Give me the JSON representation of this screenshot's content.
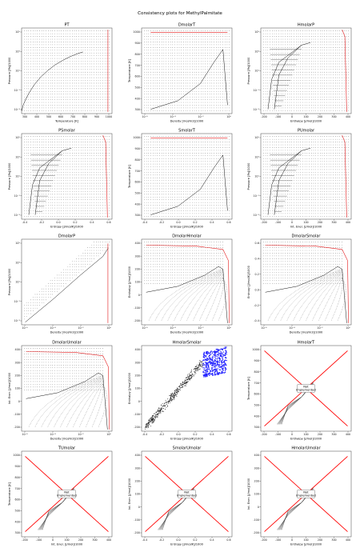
{
  "figure": {
    "title": "Consistency plots for MethylPalmitate"
  },
  "colors": {
    "grid_points": "#111111",
    "isoline": "#111111",
    "boundary": "#e31a1c",
    "points_blue": "#1f1fff",
    "not_implemented_cross": "#ff0000"
  },
  "chart_data": [
    {
      "type": "scatter",
      "title": "PT",
      "xlabel": "Temperature [K]",
      "ylabel": "Pressure [Pa]/1000",
      "x_ticks": [
        "300",
        "400",
        "500",
        "600",
        "700",
        "800",
        "900",
        "1000"
      ],
      "y_ticks": [
        "10⁻³",
        "10⁻¹",
        "10¹",
        "10³",
        "10⁵"
      ],
      "xlim": [
        300,
        1000
      ],
      "y_scale": "log",
      "ylim": [
        0.0001,
        1000000
      ],
      "grid_points": true,
      "saturation_curve": {
        "x": [
          302,
          310,
          330,
          360,
          400,
          450,
          500,
          560,
          620,
          680,
          740,
          775
        ],
        "y": [
          0.0002,
          0.0008,
          0.004,
          0.03,
          0.25,
          2,
          10,
          50,
          170,
          480,
          1100,
          1600
        ]
      },
      "boundary": "right"
    },
    {
      "type": "scatter",
      "title": "DmolarT",
      "xlabel": "Density [mol/m3]/1000",
      "ylabel": "Temperature [K]",
      "x_ticks": [
        "10⁻⁶",
        "10⁻⁴",
        "10⁻²",
        "10⁰"
      ],
      "y_ticks": [
        "300",
        "400",
        "500",
        "600",
        "700",
        "800",
        "900",
        "1000"
      ],
      "ylim": [
        270,
        1020
      ],
      "boundary": "top-right",
      "curve": {
        "x": [
          0.6,
          0.7,
          0.8,
          0.9,
          0.95
        ],
        "y": [
          300,
          360,
          500,
          650,
          775
        ]
      }
    },
    {
      "type": "scatter",
      "title": "HmolarP",
      "xlabel": "Enthalpy [J/mol]/1000",
      "ylabel": "Pressure [Pa]/1000",
      "x_ticks": [
        "-200",
        "-100",
        "0",
        "100",
        "200",
        "300",
        "400"
      ],
      "y_ticks": [
        "10⁻³",
        "10⁻¹",
        "10¹",
        "10³",
        "10⁵"
      ],
      "xlim": [
        -220,
        420
      ],
      "boundary": "right",
      "dome": true
    },
    {
      "type": "scatter",
      "title": "PSmolar",
      "xlabel": "Entropy [J/mol/K]/1000",
      "ylabel": "Pressure [Pa]/1000",
      "x_ticks": [
        "-0.4",
        "-0.2",
        "0.0",
        "0.2",
        "0.4",
        "0.6"
      ],
      "y_ticks": [
        "10⁻³",
        "10⁻¹",
        "10¹",
        "10³",
        "10⁵"
      ],
      "xlim": [
        -0.5,
        0.7
      ],
      "boundary": "right",
      "dome": true
    },
    {
      "type": "scatter",
      "title": "SmolarT",
      "xlabel": "Entropy [J/mol/K]/1000",
      "ylabel": "Temperature [K]",
      "x_ticks": [
        "-0.4",
        "-0.2",
        "0.0",
        "0.2",
        "0.4",
        "0.6"
      ],
      "y_ticks": [
        "300",
        "400",
        "500",
        "600",
        "700",
        "800",
        "900",
        "1000"
      ],
      "xlim": [
        -0.5,
        0.7
      ],
      "ylim": [
        270,
        1020
      ],
      "boundary": "top"
    },
    {
      "type": "scatter",
      "title": "PUmolar",
      "xlabel": "Int. Ener. [J/mol]/1000",
      "ylabel": "Pressure [Pa]/1000",
      "x_ticks": [
        "-200",
        "-100",
        "0",
        "100",
        "200",
        "300",
        "400"
      ],
      "y_ticks": [
        "10⁻³",
        "10⁻¹",
        "10¹",
        "10³",
        "10⁵"
      ],
      "xlim": [
        -220,
        420
      ],
      "boundary": "right",
      "dome": true
    },
    {
      "type": "scatter",
      "title": "DmolarP",
      "xlabel": "Density [mol/m3]/1000",
      "ylabel": "Pressure [Pa]/1000",
      "x_ticks": [
        "10⁻⁶",
        "10⁻⁴",
        "10⁻²",
        "10⁰"
      ],
      "y_ticks": [
        "10⁻³",
        "10⁻¹",
        "10¹",
        "10³",
        "10⁵"
      ],
      "boundary": "right",
      "diagonal_band": true
    },
    {
      "type": "scatter",
      "title": "DmolarHmolar",
      "xlabel": "Density [mol/m3]/1000",
      "ylabel": "Enthalpy [J/mol]/1000",
      "x_ticks": [
        "10⁻⁶",
        "10⁻⁴",
        "10⁻²",
        "10⁰"
      ],
      "y_ticks": [
        "-200",
        "-100",
        "0",
        "100",
        "200",
        "300",
        "400"
      ],
      "ylim": [
        -220,
        410
      ],
      "boundary": "top-right",
      "fan": true
    },
    {
      "type": "scatter",
      "title": "DmolarSmolar",
      "xlabel": "Density [mol/m3]/1000",
      "ylabel": "Entropy [J/mol/K]/1000",
      "x_ticks": [
        "10⁻⁶",
        "10⁻⁴",
        "10⁻²",
        "10⁰"
      ],
      "y_ticks": [
        "-0.4",
        "-0.2",
        "0.0",
        "0.2",
        "0.4",
        "0.6"
      ],
      "ylim": [
        -0.5,
        0.7
      ],
      "boundary": "top-right",
      "fan": true
    },
    {
      "type": "scatter",
      "title": "DmolarUmolar",
      "xlabel": "Density [mol/m3]/1000",
      "ylabel": "Int. Ener. [J/mol]/1000",
      "x_ticks": [
        "10⁻⁶",
        "10⁻⁴",
        "10⁻²",
        "10⁰"
      ],
      "y_ticks": [
        "-200",
        "-100",
        "0",
        "100",
        "200",
        "300",
        "400"
      ],
      "ylim": [
        -250,
        410
      ],
      "boundary": "top-right",
      "fan": true
    },
    {
      "type": "scatter",
      "title": "HmolarSmolar",
      "xlabel": "Entropy [J/mol/K]/1000",
      "ylabel": "Enthalpy [J/mol]/1000",
      "x_ticks": [
        "-0.4",
        "-0.2",
        "0.0",
        "0.2",
        "0.4",
        "0.6"
      ],
      "y_ticks": [
        "-200",
        "-100",
        "0",
        "100",
        "200",
        "300",
        "400"
      ],
      "xlim": [
        -0.5,
        0.7
      ],
      "ylim": [
        -220,
        410
      ],
      "points": "diagonal-with-blue-cluster"
    },
    {
      "type": "not_implemented",
      "title": "HmolarT",
      "xlabel": "Enthalpy [J/mol]/1000",
      "ylabel": "Temperature [K]",
      "x_ticks": [
        "-200",
        "-100",
        "0",
        "100",
        "200",
        "300",
        "400"
      ],
      "y_ticks": [
        "300",
        "400",
        "500",
        "600",
        "700",
        "800",
        "900",
        "1000"
      ],
      "xlim": [
        -250,
        420
      ],
      "ylim": [
        250,
        1050
      ],
      "note": "Not\nImplemented"
    },
    {
      "type": "not_implemented",
      "title": "TUmolar",
      "xlabel": "Int. Ener. [J/mol]/1000",
      "ylabel": "Temperature [K]",
      "x_ticks": [
        "-200",
        "-100",
        "0",
        "100",
        "200",
        "300",
        "400"
      ],
      "y_ticks": [
        "300",
        "400",
        "500",
        "600",
        "700",
        "800",
        "900",
        "1000"
      ],
      "xlim": [
        -250,
        420
      ],
      "ylim": [
        250,
        1050
      ],
      "note": "Not\nImplemented"
    },
    {
      "type": "not_implemented",
      "title": "SmolarUmolar",
      "xlabel": "Entropy [J/mol/K]/1000",
      "ylabel": "Int. Ener. [J/mol]/1000",
      "x_ticks": [
        "-0.4",
        "-0.2",
        "0.0",
        "0.2",
        "0.4",
        "0.6"
      ],
      "y_ticks": [
        "-200",
        "-100",
        "0",
        "100",
        "200",
        "300",
        "400"
      ],
      "xlim": [
        -0.5,
        0.7
      ],
      "ylim": [
        -250,
        420
      ],
      "note": "Not\nImplemented"
    },
    {
      "type": "not_implemented",
      "title": "HmolarUmolar",
      "xlabel": "Enthalpy [J/mol]/1000",
      "ylabel": "Int. Ener. [J/mol]/1000",
      "x_ticks": [
        "-200",
        "-100",
        "0",
        "100",
        "200",
        "300",
        "400"
      ],
      "y_ticks": [
        "-200",
        "-100",
        "0",
        "100",
        "200",
        "300",
        "400"
      ],
      "xlim": [
        -250,
        420
      ],
      "ylim": [
        -250,
        420
      ],
      "note": "Not\nImplemented"
    }
  ]
}
